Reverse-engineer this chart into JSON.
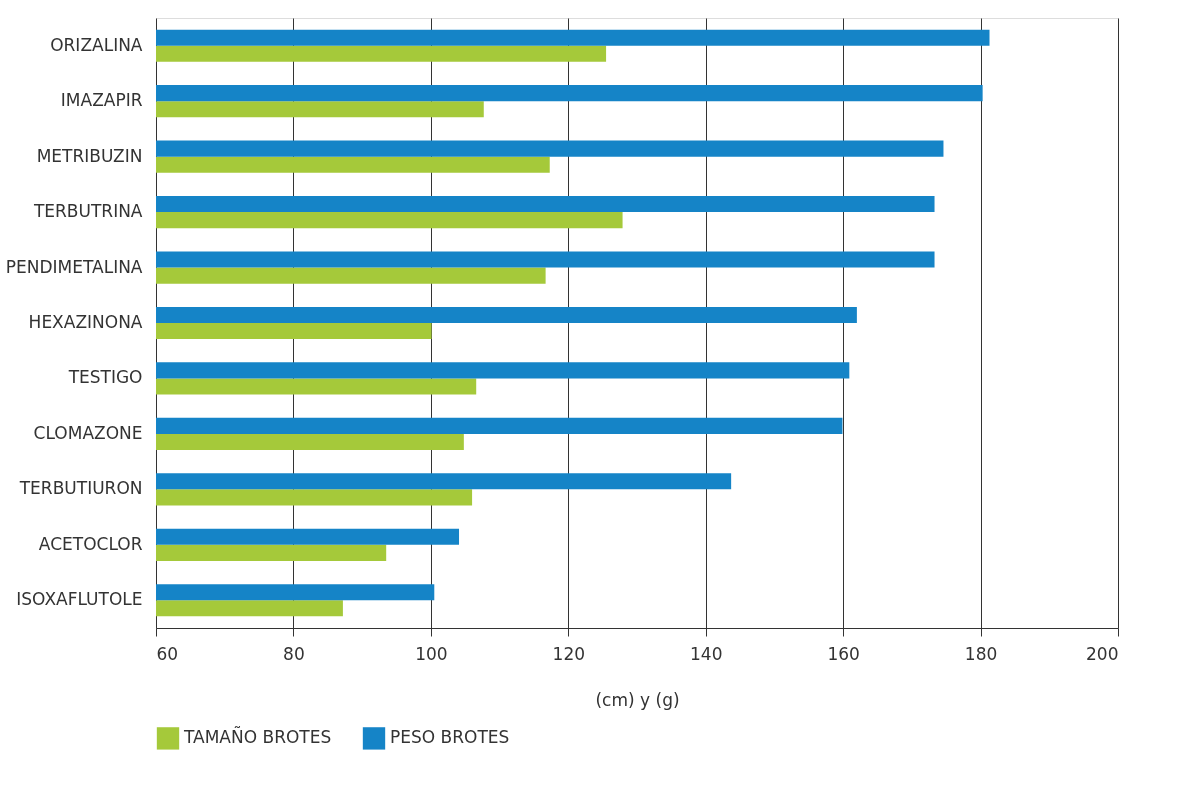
{
  "chart_data": {
    "type": "bar",
    "orientation": "horizontal",
    "xlabel": "(cm) y (g)",
    "categories": [
      "ORIZALINA",
      "IMAZAPIR",
      "METRIBUZIN",
      "TERBUTRINA",
      "PENDIMETALINA",
      "HEXAZINONA",
      "TESTIGO",
      "CLOMAZONE",
      "TERBUTIURON",
      "ACETOCLOR",
      "ISOXAFLUTOLE"
    ],
    "series": [
      {
        "name": "TAMAÑO BROTES",
        "color": "#a5c93a",
        "values": [
          125.5,
          107.7,
          117.3,
          127.9,
          116.7,
          100.1,
          106.6,
          104.8,
          106.0,
          93.5,
          87.2
        ]
      },
      {
        "name": "PESO BROTES",
        "color": "#1584c7",
        "values": [
          181.3,
          180.3,
          174.6,
          173.3,
          173.3,
          162.0,
          160.9,
          159.9,
          143.7,
          104.1,
          100.5
        ]
      }
    ],
    "xlim": [
      60,
      200
    ],
    "xticks": [
      60,
      80,
      100,
      120,
      140,
      160,
      180,
      200
    ],
    "grid": "x",
    "legend": "bottom"
  }
}
